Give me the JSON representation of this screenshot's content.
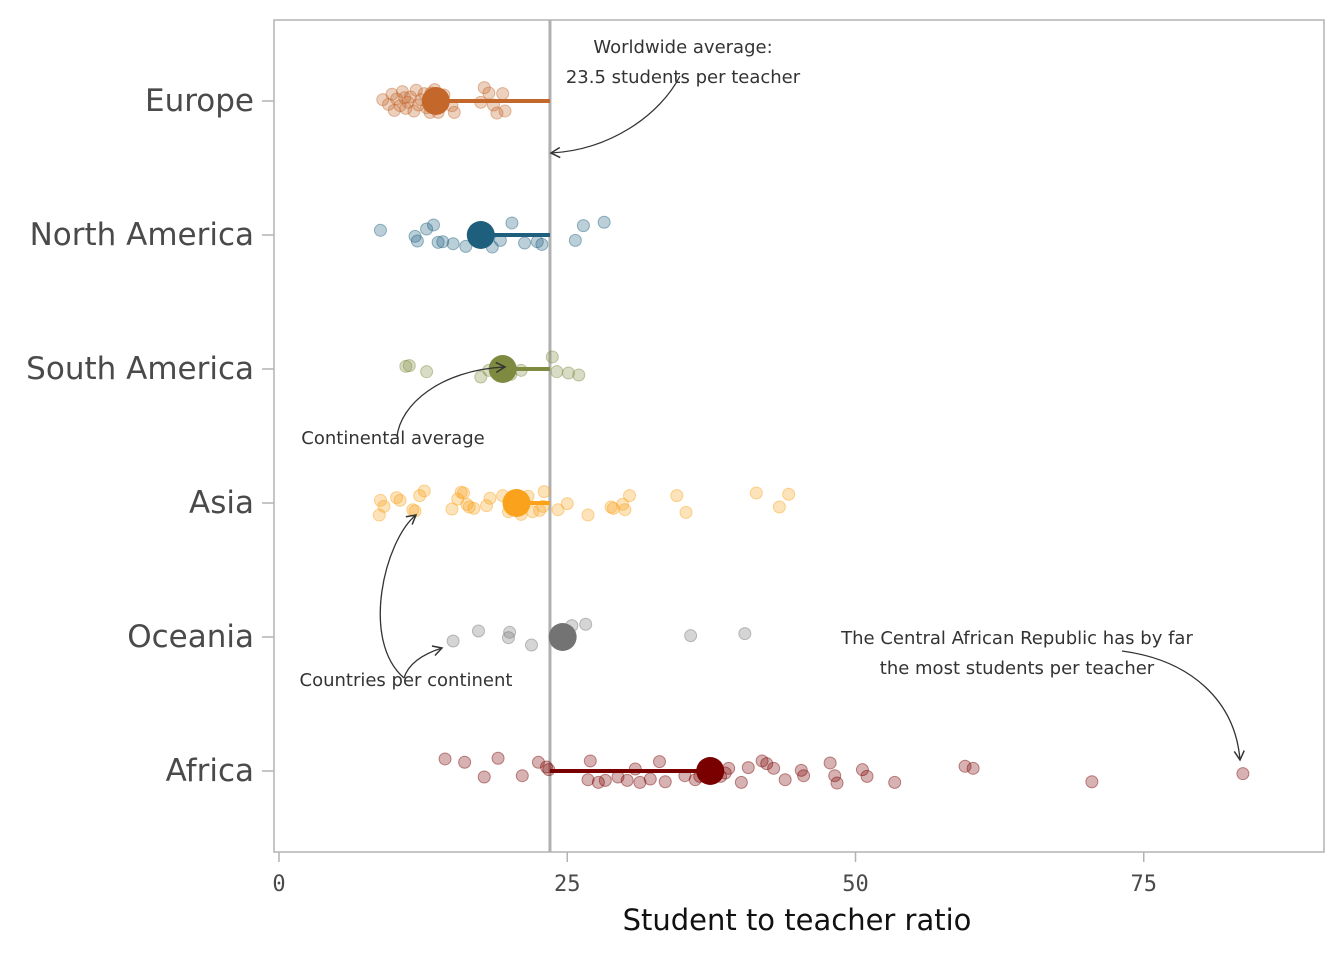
{
  "chart_data": {
    "type": "scatter",
    "title": "",
    "xlabel": "Student to teacher ratio",
    "ylabel": "",
    "xlim": [
      0,
      90
    ],
    "x_ticks": [
      0,
      25,
      50,
      75
    ],
    "grid": false,
    "worldwide_average": 23.5,
    "categories": [
      "Europe",
      "North America",
      "South America",
      "Asia",
      "Oceania",
      "Africa"
    ],
    "series": [
      {
        "category": "Europe",
        "color": "#C4672A",
        "average": 13.6,
        "points": [
          [
            9.0,
            -0.02
          ],
          [
            9.5,
            0.05
          ],
          [
            9.8,
            -0.1
          ],
          [
            10.0,
            0.14
          ],
          [
            10.2,
            -0.03
          ],
          [
            10.5,
            0.07
          ],
          [
            10.7,
            -0.14
          ],
          [
            11.0,
            0.11
          ],
          [
            11.2,
            0.02
          ],
          [
            11.4,
            -0.06
          ],
          [
            11.7,
            0.15
          ],
          [
            11.9,
            -0.16
          ],
          [
            12.1,
            0.06
          ],
          [
            12.3,
            -0.02
          ],
          [
            12.6,
            -0.11
          ],
          [
            12.8,
            0.1
          ],
          [
            13.1,
            0.17
          ],
          [
            13.3,
            0.01
          ],
          [
            13.5,
            -0.17
          ],
          [
            13.8,
            0.17
          ],
          [
            14.0,
            0.04
          ],
          [
            14.3,
            -0.09
          ],
          [
            15.0,
            0.07
          ],
          [
            15.2,
            0.17
          ],
          [
            17.5,
            0.02
          ],
          [
            17.8,
            -0.2
          ],
          [
            18.2,
            -0.12
          ],
          [
            18.6,
            0.06
          ],
          [
            18.9,
            0.18
          ],
          [
            19.4,
            -0.11
          ],
          [
            19.6,
            0.15
          ],
          [
            13.2,
            -0.12
          ],
          [
            10.9,
            -0.05
          ]
        ]
      },
      {
        "category": "North America",
        "color": "#1F5F7E",
        "average": 17.5,
        "points": [
          [
            8.8,
            -0.07
          ],
          [
            11.8,
            0.02
          ],
          [
            12.0,
            0.09
          ],
          [
            12.8,
            -0.09
          ],
          [
            13.8,
            0.11
          ],
          [
            13.4,
            -0.15
          ],
          [
            14.2,
            0.1
          ],
          [
            15.1,
            0.13
          ],
          [
            16.2,
            0.17
          ],
          [
            17.3,
            0.1
          ],
          [
            18.5,
            0.18
          ],
          [
            19.2,
            0.08
          ],
          [
            20.2,
            -0.18
          ],
          [
            21.3,
            0.12
          ],
          [
            22.4,
            0.1
          ],
          [
            22.8,
            0.14
          ],
          [
            25.7,
            0.08
          ],
          [
            26.4,
            -0.14
          ],
          [
            28.2,
            -0.19
          ],
          [
            18.0,
            -0.06
          ]
        ]
      },
      {
        "category": "South America",
        "color": "#7D8A3F",
        "average": 19.4,
        "points": [
          [
            11.0,
            -0.04
          ],
          [
            11.3,
            -0.05
          ],
          [
            12.8,
            0.04
          ],
          [
            17.5,
            0.12
          ],
          [
            18.2,
            0.02
          ],
          [
            20.1,
            0.08
          ],
          [
            21.0,
            0.02
          ],
          [
            23.7,
            -0.18
          ],
          [
            24.1,
            0.04
          ],
          [
            25.1,
            0.06
          ],
          [
            26.0,
            0.09
          ]
        ]
      },
      {
        "category": "Asia",
        "color": "#FAA21B",
        "average": 20.6,
        "points": [
          [
            8.7,
            0.18
          ],
          [
            8.8,
            -0.04
          ],
          [
            9.1,
            0.05
          ],
          [
            10.2,
            -0.08
          ],
          [
            10.5,
            -0.04
          ],
          [
            11.6,
            0.1
          ],
          [
            11.8,
            0.12
          ],
          [
            12.2,
            -0.11
          ],
          [
            12.6,
            -0.18
          ],
          [
            15.0,
            0.09
          ],
          [
            15.5,
            -0.06
          ],
          [
            15.8,
            -0.16
          ],
          [
            16.0,
            -0.15
          ],
          [
            16.3,
            0.02
          ],
          [
            16.5,
            0.06
          ],
          [
            16.9,
            0.08
          ],
          [
            18.0,
            0.04
          ],
          [
            18.3,
            -0.07
          ],
          [
            19.4,
            -0.11
          ],
          [
            19.9,
            0.13
          ],
          [
            21.0,
            0.17
          ],
          [
            21.6,
            -0.1
          ],
          [
            22.0,
            0.13
          ],
          [
            22.6,
            0.11
          ],
          [
            22.9,
            0.05
          ],
          [
            24.2,
            0.1
          ],
          [
            25.0,
            0.01
          ],
          [
            26.8,
            0.18
          ],
          [
            28.8,
            0.06
          ],
          [
            29.0,
            0.08
          ],
          [
            29.8,
            0.02
          ],
          [
            30.0,
            0.1
          ],
          [
            30.4,
            -0.11
          ],
          [
            34.5,
            -0.11
          ],
          [
            35.3,
            0.14
          ],
          [
            41.4,
            -0.15
          ],
          [
            43.4,
            0.06
          ],
          [
            44.2,
            -0.13
          ],
          [
            23.0,
            -0.17
          ]
        ]
      },
      {
        "category": "Oceania",
        "color": "#737373",
        "average": 24.6,
        "points": [
          [
            15.1,
            0.06
          ],
          [
            17.3,
            -0.09
          ],
          [
            20.0,
            -0.07
          ],
          [
            19.9,
            0.01
          ],
          [
            21.9,
            0.12
          ],
          [
            25.4,
            -0.17
          ],
          [
            26.6,
            -0.19
          ],
          [
            35.7,
            -0.02
          ],
          [
            40.4,
            -0.05
          ]
        ]
      },
      {
        "category": "Africa",
        "color": "#7A0000",
        "average": 37.4,
        "points": [
          [
            14.4,
            -0.18
          ],
          [
            16.1,
            -0.13
          ],
          [
            17.8,
            0.09
          ],
          [
            19.0,
            -0.19
          ],
          [
            21.1,
            0.07
          ],
          [
            22.5,
            -0.13
          ],
          [
            23.2,
            -0.06
          ],
          [
            23.4,
            -0.02
          ],
          [
            26.8,
            0.13
          ],
          [
            27.0,
            -0.15
          ],
          [
            27.7,
            0.17
          ],
          [
            28.3,
            0.14
          ],
          [
            29.4,
            0.09
          ],
          [
            30.2,
            0.14
          ],
          [
            30.9,
            -0.03
          ],
          [
            31.3,
            0.17
          ],
          [
            32.2,
            0.12
          ],
          [
            33.0,
            -0.14
          ],
          [
            33.5,
            0.16
          ],
          [
            35.2,
            0.07
          ],
          [
            36.1,
            0.13
          ],
          [
            36.5,
            0.08
          ],
          [
            37.2,
            -0.04
          ],
          [
            38.3,
            0.08
          ],
          [
            38.7,
            0.03
          ],
          [
            39.0,
            -0.04
          ],
          [
            40.1,
            0.17
          ],
          [
            40.7,
            -0.05
          ],
          [
            41.9,
            -0.15
          ],
          [
            42.3,
            -0.11
          ],
          [
            42.9,
            -0.04
          ],
          [
            43.9,
            0.13
          ],
          [
            45.3,
            -0.01
          ],
          [
            45.5,
            0.07
          ],
          [
            47.8,
            -0.12
          ],
          [
            48.2,
            0.07
          ],
          [
            48.4,
            0.18
          ],
          [
            50.6,
            -0.02
          ],
          [
            51.0,
            0.08
          ],
          [
            53.4,
            0.17
          ],
          [
            59.5,
            -0.07
          ],
          [
            60.2,
            -0.04
          ],
          [
            70.5,
            0.16
          ],
          [
            83.6,
            0.04
          ]
        ]
      }
    ],
    "annotations": [
      {
        "lines": [
          "Worldwide average:",
          "23.5 students per teacher"
        ]
      },
      {
        "lines": [
          "Continental average"
        ]
      },
      {
        "lines": [
          "Countries per continent"
        ]
      },
      {
        "lines": [
          "The Central African Republic has by far",
          "the most students per teacher"
        ]
      }
    ]
  }
}
